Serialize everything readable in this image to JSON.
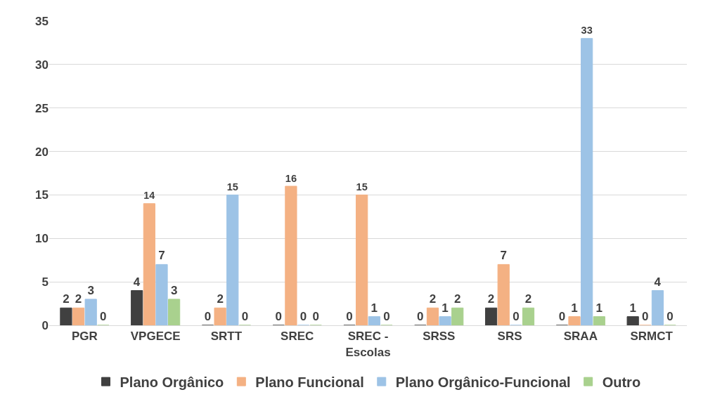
{
  "chart_data": {
    "type": "bar",
    "categories": [
      "PGR",
      "VPGECE",
      "SRTT",
      "SREC",
      "SREC - Escolas",
      "SRSS",
      "SRS",
      "SRAA",
      "SRMCT"
    ],
    "series": [
      {
        "name": "Plano Orgânico",
        "color": "#404040",
        "values": [
          2,
          4,
          0,
          0,
          0,
          0,
          2,
          0,
          1
        ]
      },
      {
        "name": "Plano Funcional",
        "color": "#f4b183",
        "values": [
          2,
          14,
          2,
          16,
          15,
          2,
          7,
          1,
          0
        ]
      },
      {
        "name": "Plano Orgânico-Funcional",
        "color": "#9dc3e6",
        "values": [
          3,
          7,
          15,
          0,
          1,
          1,
          0,
          33,
          4
        ]
      },
      {
        "name": "Outro",
        "color": "#a9d18e",
        "values": [
          0,
          3,
          0,
          0,
          0,
          2,
          2,
          1,
          0
        ]
      }
    ],
    "ylim": [
      0,
      35
    ],
    "yticks": [
      0,
      5,
      10,
      15,
      20,
      25,
      30,
      35
    ],
    "grid": "y",
    "legend": "bottom",
    "data_labels": true
  }
}
